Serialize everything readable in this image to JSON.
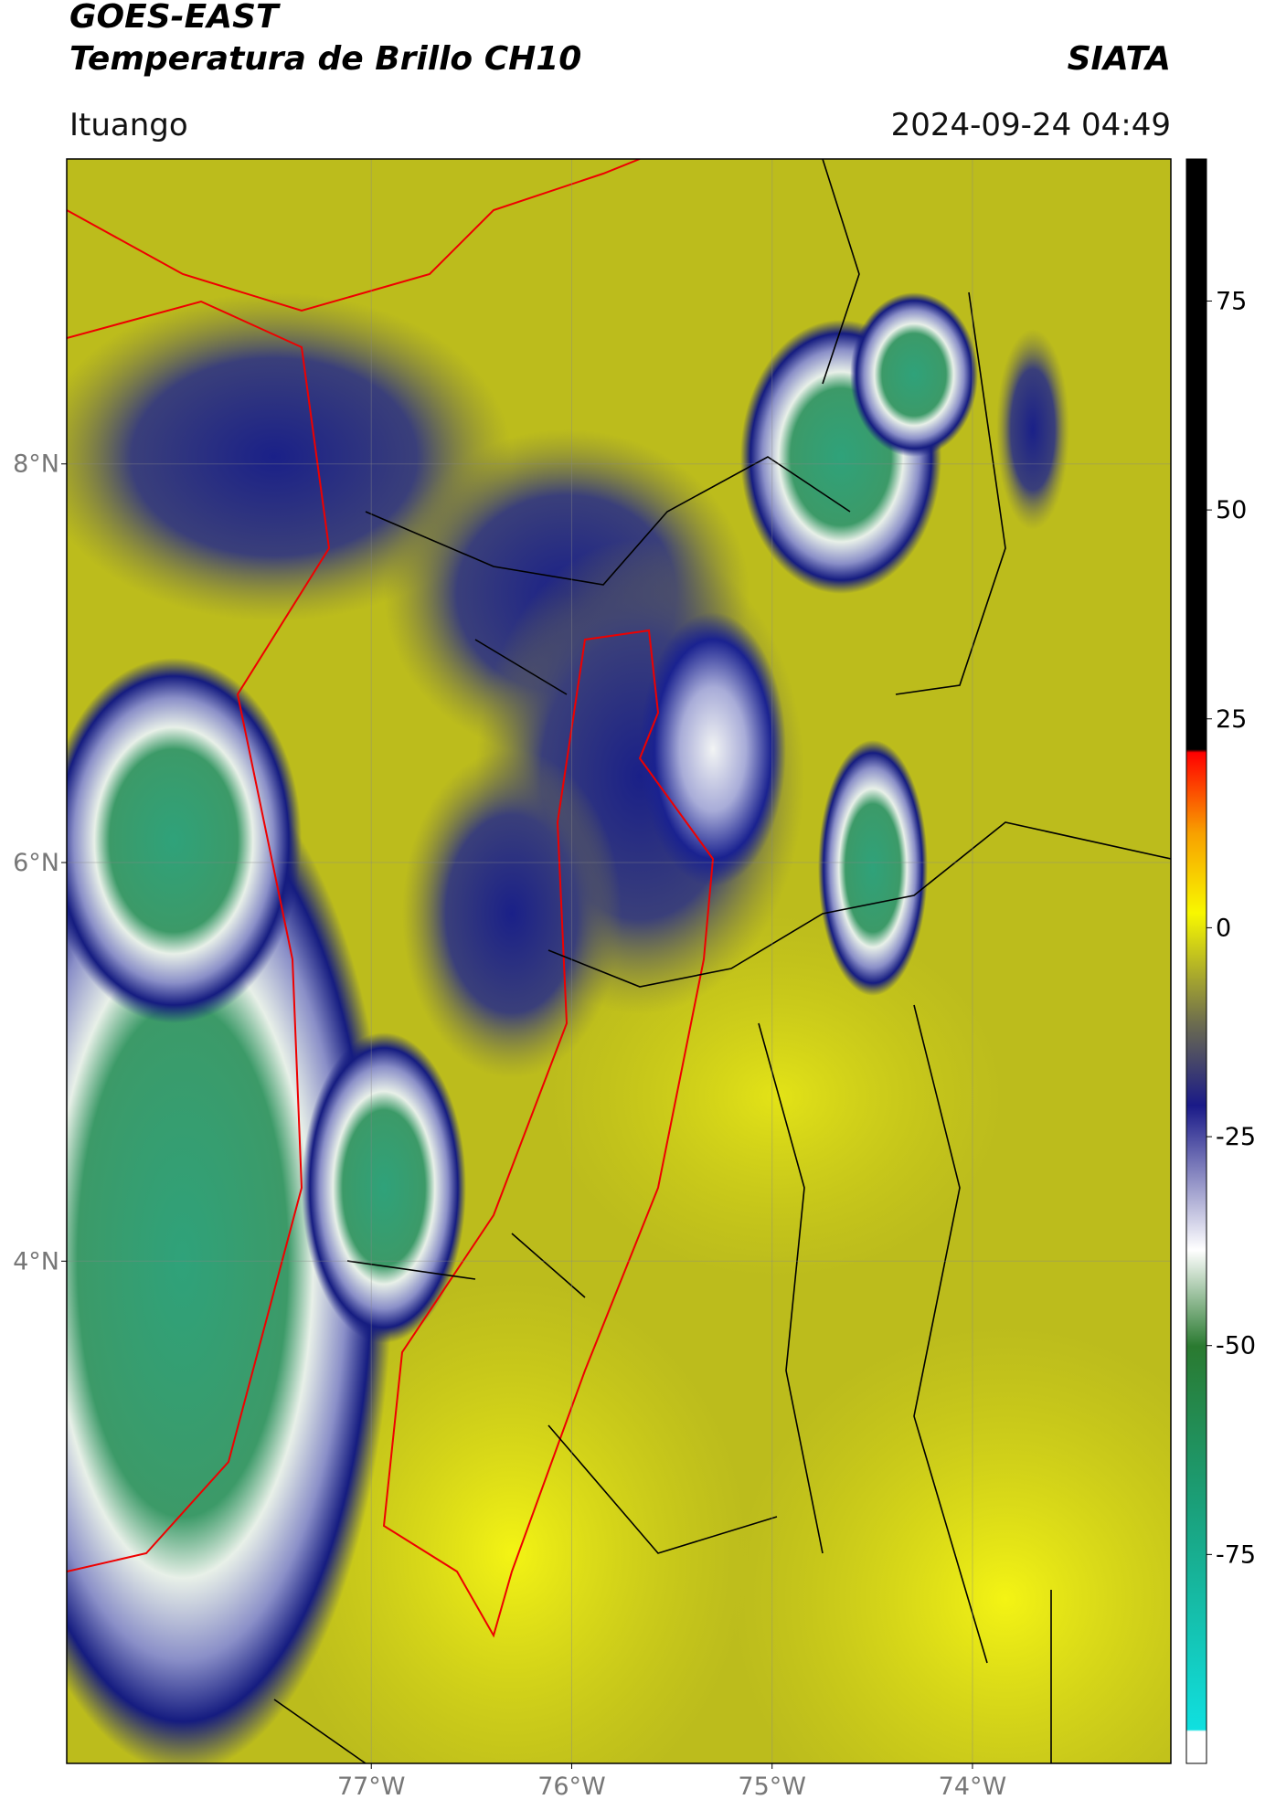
{
  "header": {
    "title_line1": "GOES-EAST",
    "title_line2": "Temperatura de Brillo CH10",
    "org": "SIATA",
    "location": "Ituango",
    "datetime": "2024-09-24 04:49"
  },
  "map": {
    "lat_range": [
      1.48,
      9.53
    ],
    "lon_range": [
      -78.52,
      -73.01
    ],
    "lat_ticks": [
      {
        "value": 4,
        "label": "4°N"
      },
      {
        "value": 6,
        "label": "6°N"
      },
      {
        "value": 8,
        "label": "8°N"
      }
    ],
    "lon_ticks": [
      {
        "value": -77,
        "label": "77°W"
      },
      {
        "value": -76,
        "label": "76°W"
      },
      {
        "value": -75,
        "label": "75°W"
      },
      {
        "value": -74,
        "label": "74°W"
      }
    ]
  },
  "colorbar": {
    "range": [
      -100,
      92
    ],
    "ticks": [
      -75,
      -50,
      -25,
      0,
      25,
      50,
      75
    ]
  }
}
